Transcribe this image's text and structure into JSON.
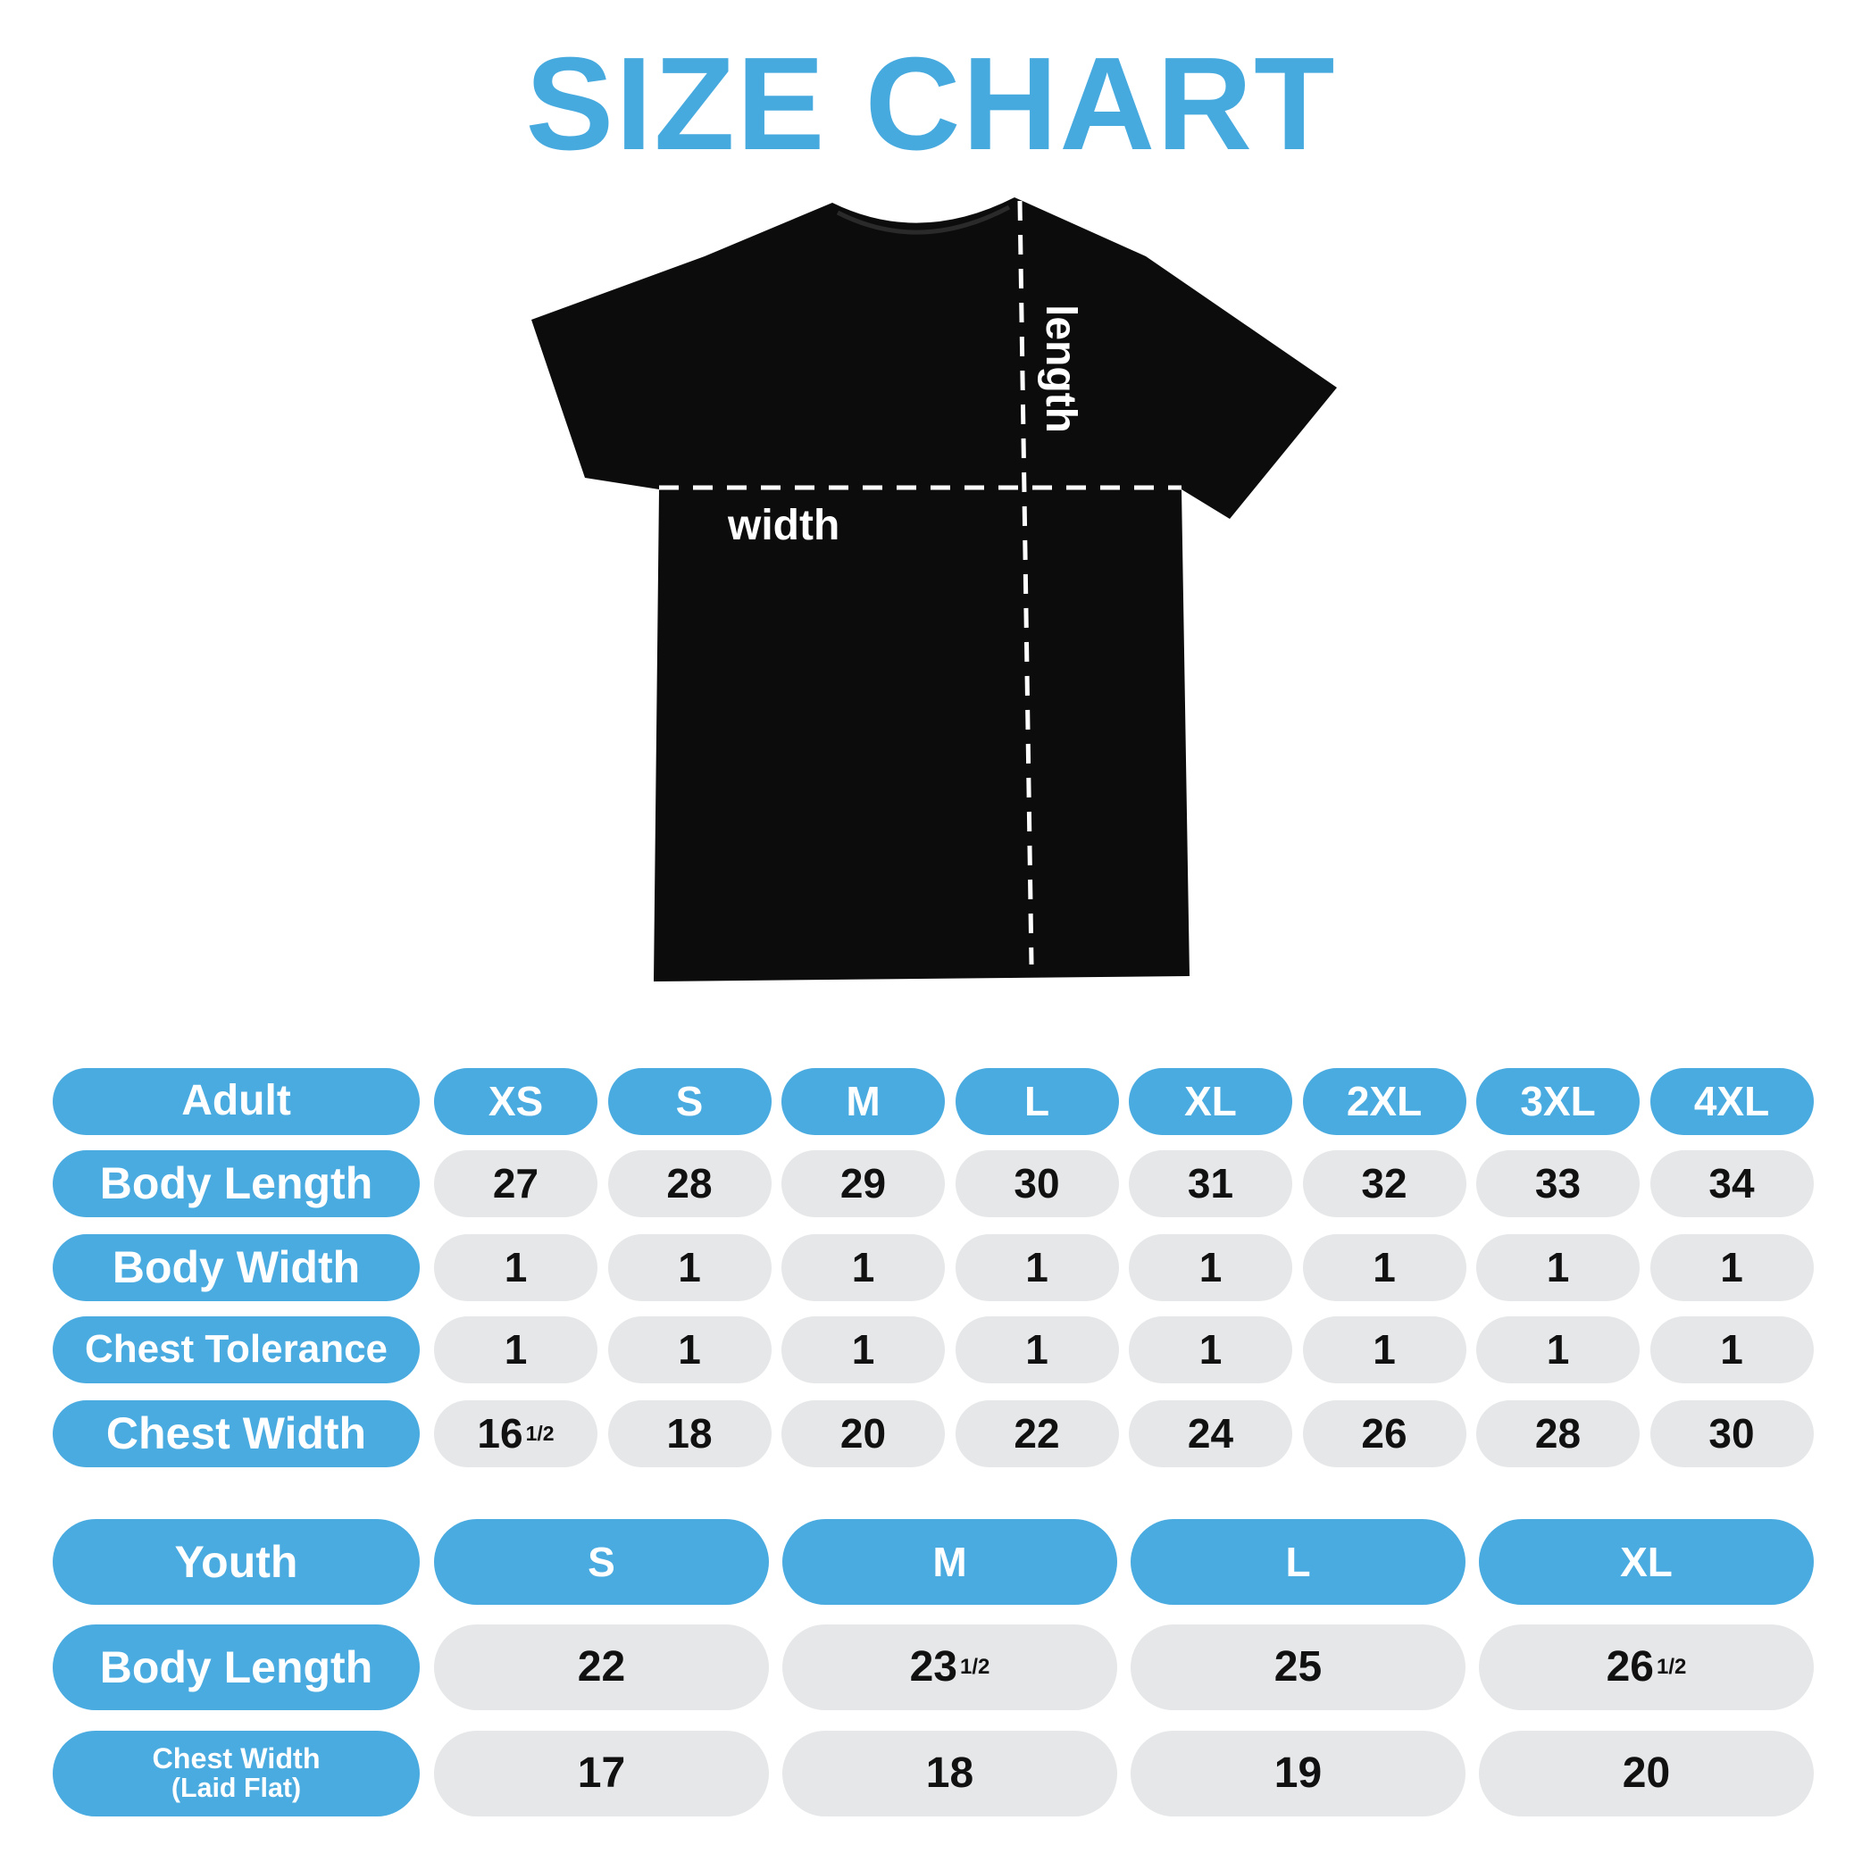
{
  "title": "SIZE CHART",
  "colors": {
    "accent": "#4aabe0",
    "cell": "#e6e7e8",
    "shirt": "#0c0c0c"
  },
  "diagram": {
    "width_label": "width",
    "length_label": "length"
  },
  "adult": {
    "header": "Adult",
    "sizes": [
      "XS",
      "S",
      "M",
      "L",
      "XL",
      "2XL",
      "3XL",
      "4XL"
    ],
    "rows": [
      {
        "label": "Body Length",
        "values": [
          "27",
          "28",
          "29",
          "30",
          "31",
          "32",
          "33",
          "34"
        ]
      },
      {
        "label": "Body Width",
        "values": [
          "1",
          "1",
          "1",
          "1",
          "1",
          "1",
          "1",
          "1"
        ]
      },
      {
        "label": "Chest Tolerance",
        "values": [
          "1",
          "1",
          "1",
          "1",
          "1",
          "1",
          "1",
          "1"
        ]
      },
      {
        "label": "Chest Width",
        "values": [
          "16 1/2",
          "18",
          "20",
          "22",
          "24",
          "26",
          "28",
          "30"
        ]
      }
    ]
  },
  "youth": {
    "header": "Youth",
    "sizes": [
      "S",
      "M",
      "L",
      "XL"
    ],
    "rows": [
      {
        "label": "Body Length",
        "sublabel": "",
        "values": [
          "22",
          "23 1/2",
          "25",
          "26 1/2"
        ]
      },
      {
        "label": "Chest Width",
        "sublabel": "(Laid Flat)",
        "values": [
          "17",
          "18",
          "19",
          "20"
        ]
      }
    ]
  }
}
